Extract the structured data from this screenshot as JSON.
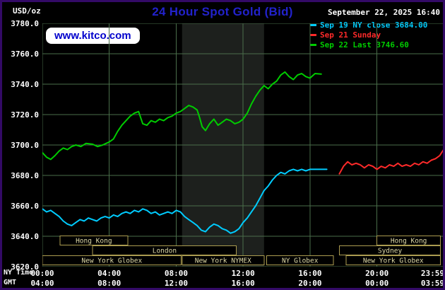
{
  "colors": {
    "background": "#000000",
    "border": "#330a66",
    "grid": "#4a6e4a",
    "band": "#1d201d",
    "title": "#2222cc",
    "axis_text": "#ffffff",
    "kitco_text": "#0000cc",
    "kitco_bg": "#ffffff",
    "session_border": "#ab9c50",
    "session_text": "#ded9a6"
  },
  "header": {
    "units_label": "USD/oz",
    "title": "24 Hour Spot Gold (Bid)",
    "datetime": "September 22, 2025 16:40",
    "watermark": "www.kitco.com"
  },
  "legend": [
    {
      "label": "Sep 19 NY close 3684.00",
      "color": "#00ccff"
    },
    {
      "label": "Sep 21 Sunday",
      "color": "#ff2a2a"
    },
    {
      "label": "Sep 22 Last 3746.60",
      "color": "#00cc00"
    }
  ],
  "axes": {
    "y_ticks": [
      "3780.0",
      "3760.0",
      "3740.0",
      "3720.0",
      "3700.0",
      "3680.0",
      "3660.0",
      "3640.0",
      "3620.0"
    ],
    "x_rows": [
      {
        "label": "NY Time",
        "ticks": [
          {
            "label": "00:00",
            "hour": 0
          },
          {
            "label": "04:00",
            "hour": 4
          },
          {
            "label": "08:00",
            "hour": 8
          },
          {
            "label": "12:00",
            "hour": 12
          },
          {
            "label": "16:00",
            "hour": 16
          },
          {
            "label": "20:00",
            "hour": 20
          },
          {
            "label": "23:59",
            "hour": 23.983
          }
        ]
      },
      {
        "label": "GMT",
        "ticks": [
          {
            "label": "04:00",
            "hour": 0
          },
          {
            "label": "08:00",
            "hour": 4
          },
          {
            "label": "12:00",
            "hour": 8
          },
          {
            "label": "16:00",
            "hour": 12
          },
          {
            "label": "20:00",
            "hour": 16
          },
          {
            "label": "00:00",
            "hour": 20
          },
          {
            "label": "03:59",
            "hour": 23.983
          }
        ]
      }
    ]
  },
  "chart_data": {
    "type": "line",
    "title": "24 Hour Spot Gold (Bid)",
    "ylabel": "USD/oz",
    "ylim": [
      3620,
      3780
    ],
    "xlim_hours": [
      0,
      23.983
    ],
    "x_unit": "hour of day, NY time",
    "grid": true,
    "legend_position": "top-right",
    "band": {
      "name": "New York NYMEX session highlight",
      "start_hour": 8.35,
      "end_hour": 13.25
    },
    "series": [
      {
        "id": "sep19",
        "name": "Sep 19 NY close 3684.00",
        "color": "#00ccff",
        "points": [
          [
            0,
            3658
          ],
          [
            0.25,
            3656
          ],
          [
            0.5,
            3657
          ],
          [
            0.75,
            3655
          ],
          [
            1,
            3653
          ],
          [
            1.25,
            3650
          ],
          [
            1.5,
            3648
          ],
          [
            1.75,
            3647
          ],
          [
            2,
            3649
          ],
          [
            2.25,
            3651
          ],
          [
            2.5,
            3650
          ],
          [
            2.75,
            3652
          ],
          [
            3,
            3651
          ],
          [
            3.25,
            3650
          ],
          [
            3.5,
            3652
          ],
          [
            3.75,
            3653
          ],
          [
            4,
            3652
          ],
          [
            4.25,
            3654
          ],
          [
            4.5,
            3653
          ],
          [
            4.75,
            3655
          ],
          [
            5,
            3656
          ],
          [
            5.25,
            3655
          ],
          [
            5.5,
            3657
          ],
          [
            5.75,
            3656
          ],
          [
            6,
            3658
          ],
          [
            6.25,
            3657
          ],
          [
            6.5,
            3655
          ],
          [
            6.75,
            3656
          ],
          [
            7,
            3654
          ],
          [
            7.25,
            3655
          ],
          [
            7.5,
            3656
          ],
          [
            7.75,
            3655
          ],
          [
            8,
            3657
          ],
          [
            8.25,
            3656
          ],
          [
            8.5,
            3653
          ],
          [
            8.75,
            3651
          ],
          [
            9,
            3649
          ],
          [
            9.25,
            3647
          ],
          [
            9.5,
            3644
          ],
          [
            9.75,
            3643
          ],
          [
            10,
            3646
          ],
          [
            10.25,
            3648
          ],
          [
            10.5,
            3647
          ],
          [
            10.75,
            3645
          ],
          [
            11,
            3644
          ],
          [
            11.25,
            3642
          ],
          [
            11.5,
            3643
          ],
          [
            11.75,
            3645
          ],
          [
            12,
            3649
          ],
          [
            12.25,
            3652
          ],
          [
            12.5,
            3656
          ],
          [
            12.75,
            3660
          ],
          [
            13,
            3665
          ],
          [
            13.25,
            3670
          ],
          [
            13.5,
            3673
          ],
          [
            13.75,
            3677
          ],
          [
            14,
            3680
          ],
          [
            14.25,
            3682
          ],
          [
            14.5,
            3681
          ],
          [
            14.75,
            3683
          ],
          [
            15,
            3684
          ],
          [
            15.25,
            3683
          ],
          [
            15.5,
            3684
          ],
          [
            15.75,
            3683
          ],
          [
            16,
            3684
          ],
          [
            16.25,
            3684
          ],
          [
            16.5,
            3684
          ],
          [
            16.75,
            3684
          ],
          [
            17,
            3684
          ]
        ]
      },
      {
        "id": "sep21",
        "name": "Sep 21 Sunday",
        "color": "#ff2a2a",
        "points": [
          [
            17.75,
            3681
          ],
          [
            18,
            3686
          ],
          [
            18.25,
            3689
          ],
          [
            18.5,
            3687
          ],
          [
            18.75,
            3688
          ],
          [
            19,
            3687
          ],
          [
            19.25,
            3685
          ],
          [
            19.5,
            3687
          ],
          [
            19.75,
            3686
          ],
          [
            20,
            3684
          ],
          [
            20.25,
            3686
          ],
          [
            20.5,
            3685
          ],
          [
            20.75,
            3687
          ],
          [
            21,
            3686
          ],
          [
            21.25,
            3688
          ],
          [
            21.5,
            3686
          ],
          [
            21.75,
            3687
          ],
          [
            22,
            3686
          ],
          [
            22.25,
            3688
          ],
          [
            22.5,
            3687
          ],
          [
            22.75,
            3689
          ],
          [
            23,
            3688
          ],
          [
            23.25,
            3690
          ],
          [
            23.5,
            3691
          ],
          [
            23.75,
            3693
          ],
          [
            23.983,
            3697
          ]
        ]
      },
      {
        "id": "sep22",
        "name": "Sep 22 Last 3746.60",
        "color": "#00cc00",
        "points": [
          [
            0,
            3695
          ],
          [
            0.25,
            3692
          ],
          [
            0.5,
            3690.5
          ],
          [
            0.75,
            3693
          ],
          [
            1,
            3696
          ],
          [
            1.25,
            3698
          ],
          [
            1.5,
            3697
          ],
          [
            1.75,
            3699
          ],
          [
            2,
            3700
          ],
          [
            2.3,
            3699
          ],
          [
            2.6,
            3701
          ],
          [
            3,
            3700.5
          ],
          [
            3.3,
            3699
          ],
          [
            3.6,
            3700
          ],
          [
            4,
            3702
          ],
          [
            4.25,
            3704
          ],
          [
            4.5,
            3709
          ],
          [
            4.75,
            3713
          ],
          [
            5,
            3716
          ],
          [
            5.25,
            3719
          ],
          [
            5.5,
            3721
          ],
          [
            5.75,
            3722
          ],
          [
            6,
            3714
          ],
          [
            6.25,
            3713
          ],
          [
            6.5,
            3716
          ],
          [
            6.75,
            3715
          ],
          [
            7,
            3717
          ],
          [
            7.25,
            3716
          ],
          [
            7.5,
            3718
          ],
          [
            7.75,
            3719
          ],
          [
            8,
            3721
          ],
          [
            8.25,
            3722
          ],
          [
            8.5,
            3724
          ],
          [
            8.75,
            3726
          ],
          [
            9,
            3725
          ],
          [
            9.25,
            3723
          ],
          [
            9.4,
            3718
          ],
          [
            9.55,
            3712
          ],
          [
            9.75,
            3709.5
          ],
          [
            10,
            3714
          ],
          [
            10.25,
            3717
          ],
          [
            10.5,
            3713
          ],
          [
            10.75,
            3715
          ],
          [
            11,
            3717
          ],
          [
            11.25,
            3716
          ],
          [
            11.5,
            3714
          ],
          [
            11.75,
            3715
          ],
          [
            12,
            3717
          ],
          [
            12.25,
            3721
          ],
          [
            12.5,
            3727
          ],
          [
            12.75,
            3732
          ],
          [
            13,
            3736
          ],
          [
            13.25,
            3739
          ],
          [
            13.5,
            3737
          ],
          [
            13.75,
            3740
          ],
          [
            14,
            3742
          ],
          [
            14.25,
            3746
          ],
          [
            14.5,
            3748
          ],
          [
            14.75,
            3745
          ],
          [
            15,
            3743
          ],
          [
            15.25,
            3746
          ],
          [
            15.5,
            3747
          ],
          [
            15.75,
            3745
          ],
          [
            16,
            3744
          ],
          [
            16.3,
            3747
          ],
          [
            16.67,
            3746.6
          ]
        ]
      }
    ],
    "sessions": [
      {
        "label": "Hong Kong",
        "row": 0,
        "start": 1.05,
        "end": 5.1
      },
      {
        "label": "Hong Kong",
        "row": 0,
        "start": 20.0,
        "end": 23.8
      },
      {
        "label": "London",
        "row": 1,
        "start": 3.0,
        "end": 11.6
      },
      {
        "label": "Sydney",
        "row": 1,
        "start": 17.75,
        "end": 23.8
      },
      {
        "label": "New York Globex",
        "row": 2,
        "start": 0.0,
        "end": 8.3
      },
      {
        "label": "New York NYMEX",
        "row": 2,
        "start": 8.35,
        "end": 13.25
      },
      {
        "label": "NY Globex",
        "row": 2,
        "start": 13.4,
        "end": 17.4
      },
      {
        "label": "New York Globex",
        "row": 2,
        "start": 18.15,
        "end": 23.8
      }
    ]
  }
}
